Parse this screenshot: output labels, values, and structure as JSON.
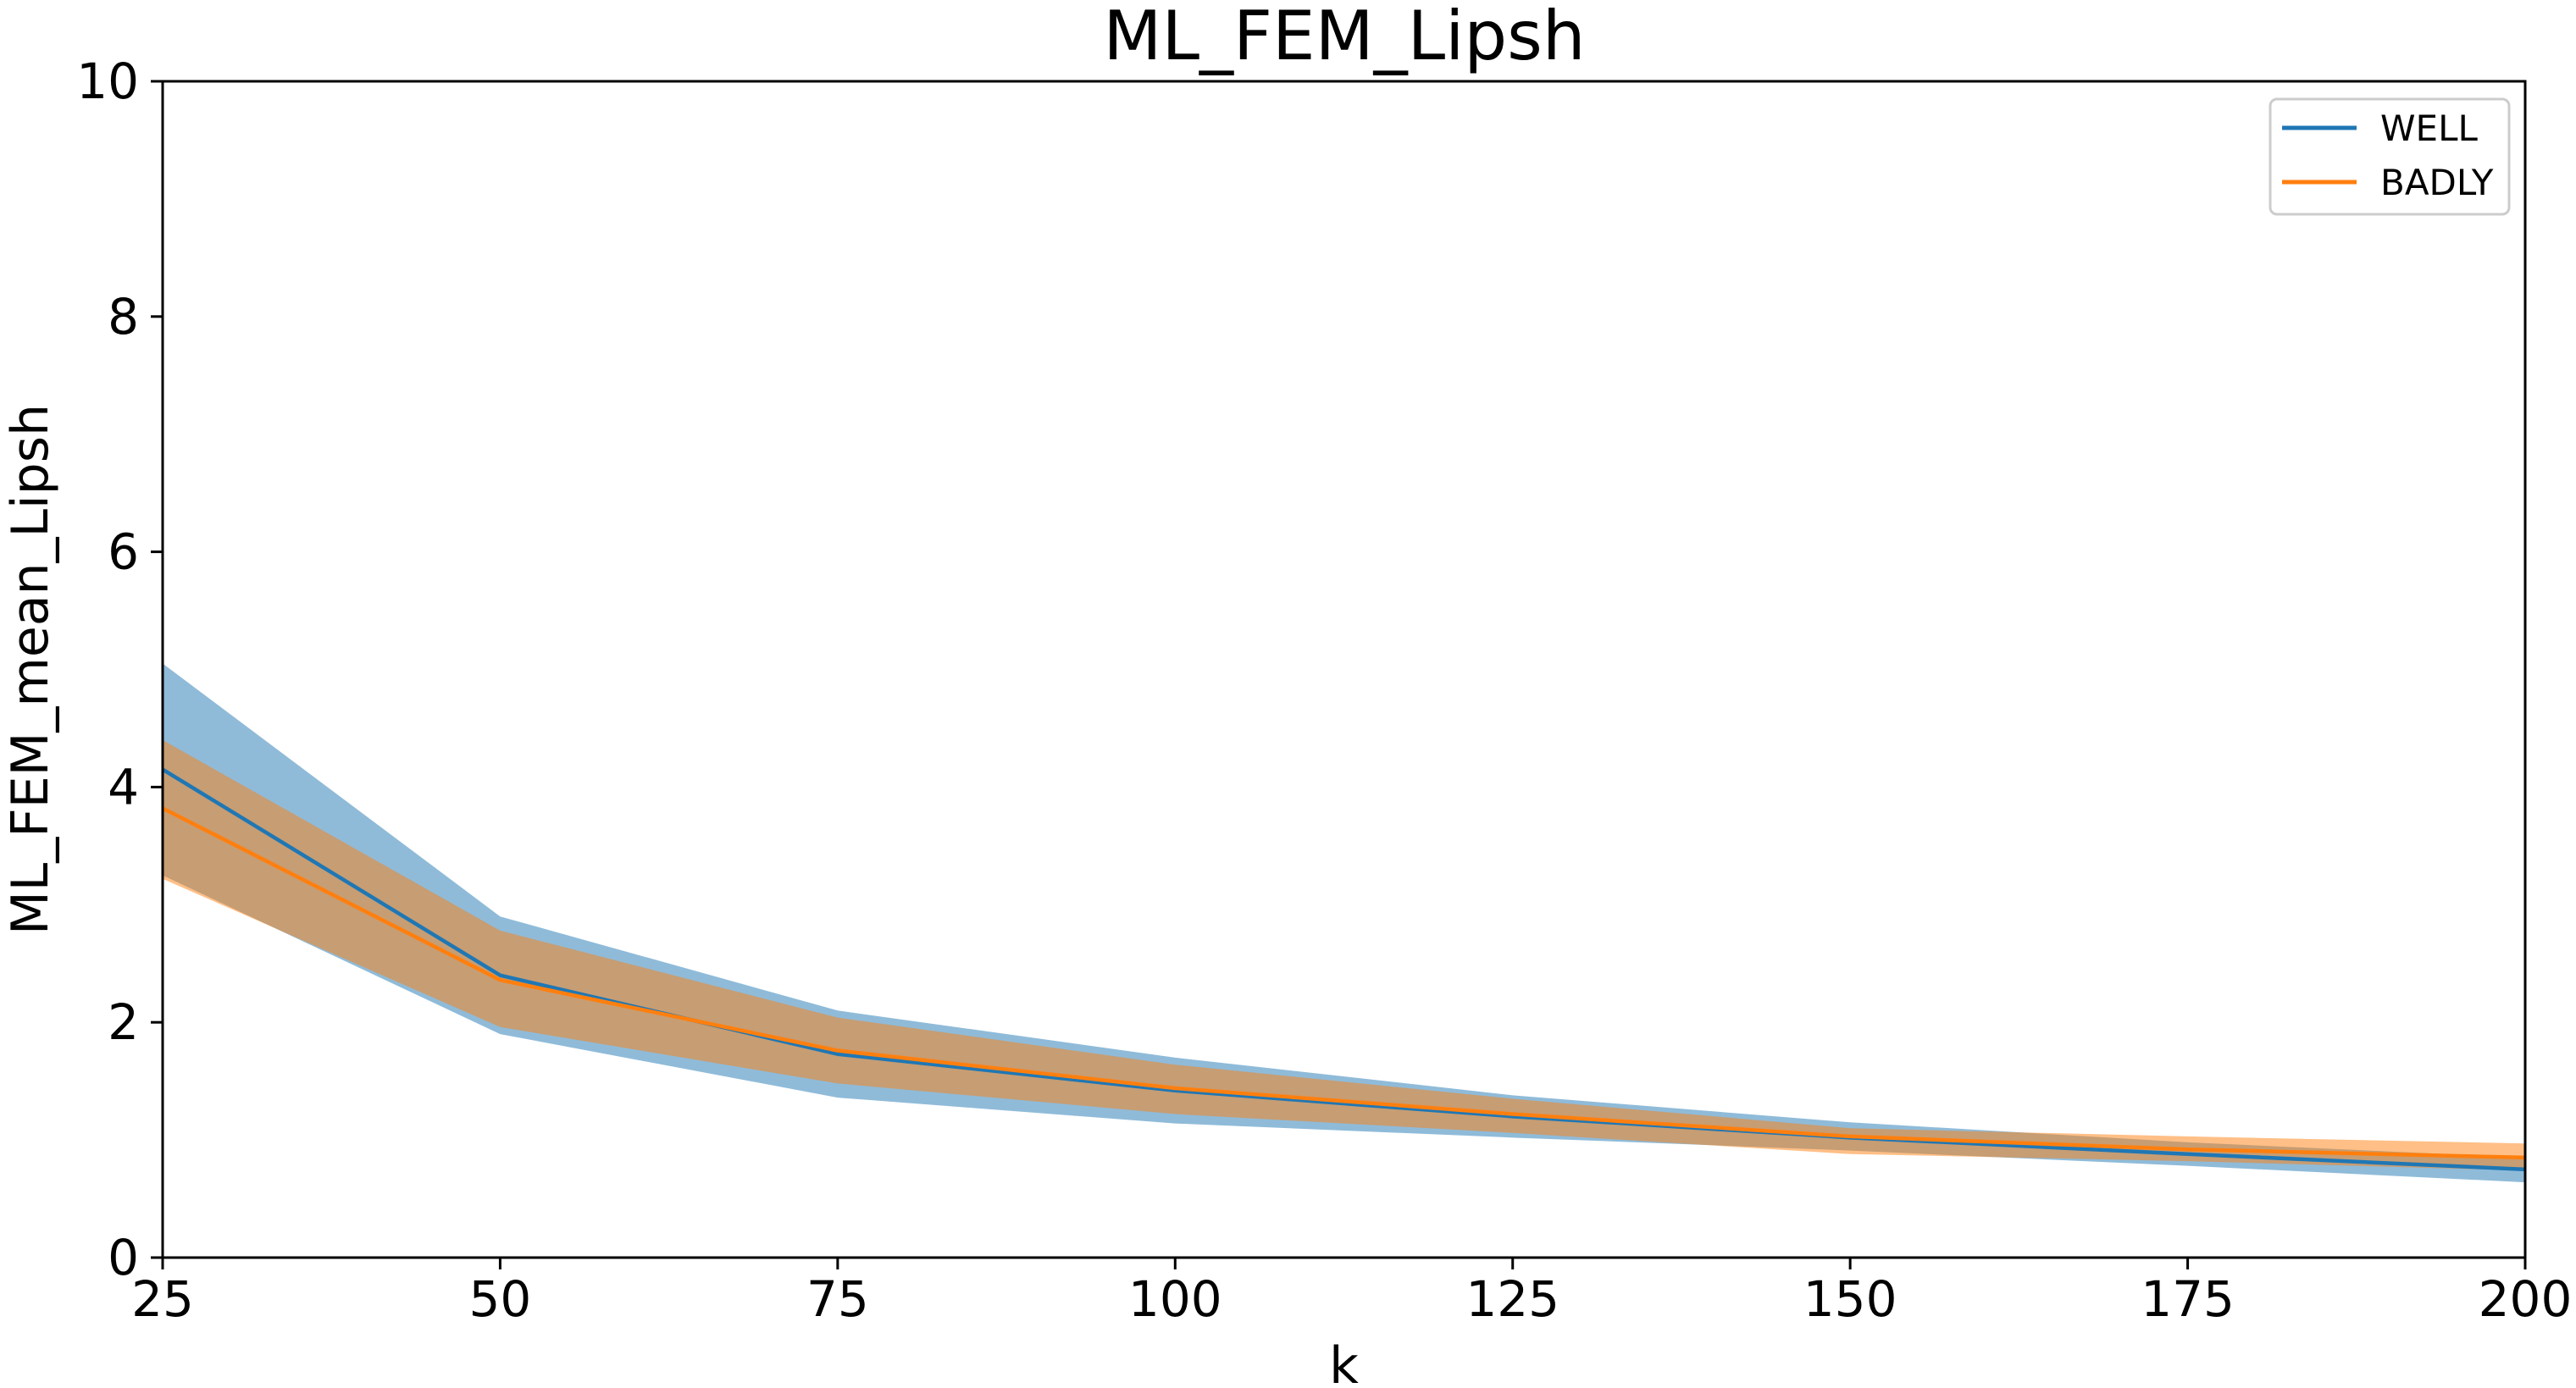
{
  "chart_data": {
    "type": "line",
    "title": "ML_FEM_Lipsh",
    "xlabel": "k",
    "ylabel": "ML_FEM_mean_Lipsh",
    "x": [
      25,
      50,
      75,
      100,
      125,
      150,
      175,
      200
    ],
    "xlim": [
      25,
      200
    ],
    "ylim": [
      0,
      10
    ],
    "xticks": [
      "25",
      "50",
      "75",
      "100",
      "125",
      "150",
      "175",
      "200"
    ],
    "yticks": [
      "0",
      "2",
      "4",
      "6",
      "8",
      "10"
    ],
    "grid": false,
    "legend_position": "top-right",
    "series": [
      {
        "name": "WELL",
        "color": "#1f77b4",
        "band_color": "#1f77b4",
        "band_opacity": 0.5,
        "values": [
          4.15,
          2.4,
          1.73,
          1.42,
          1.2,
          1.02,
          0.88,
          0.75
        ],
        "band_upper": [
          5.05,
          2.9,
          2.1,
          1.7,
          1.38,
          1.15,
          0.98,
          0.85
        ],
        "band_lower": [
          3.25,
          1.9,
          1.36,
          1.14,
          1.02,
          0.91,
          0.78,
          0.64
        ]
      },
      {
        "name": "BADLY",
        "color": "#ff7f0e",
        "band_color": "#ff7f0e",
        "band_opacity": 0.5,
        "values": [
          3.82,
          2.36,
          1.76,
          1.44,
          1.22,
          1.03,
          0.92,
          0.85
        ],
        "band_upper": [
          4.4,
          2.78,
          2.04,
          1.64,
          1.35,
          1.1,
          1.03,
          0.97
        ],
        "band_lower": [
          3.22,
          1.96,
          1.48,
          1.22,
          1.06,
          0.88,
          0.82,
          0.74
        ]
      }
    ]
  }
}
